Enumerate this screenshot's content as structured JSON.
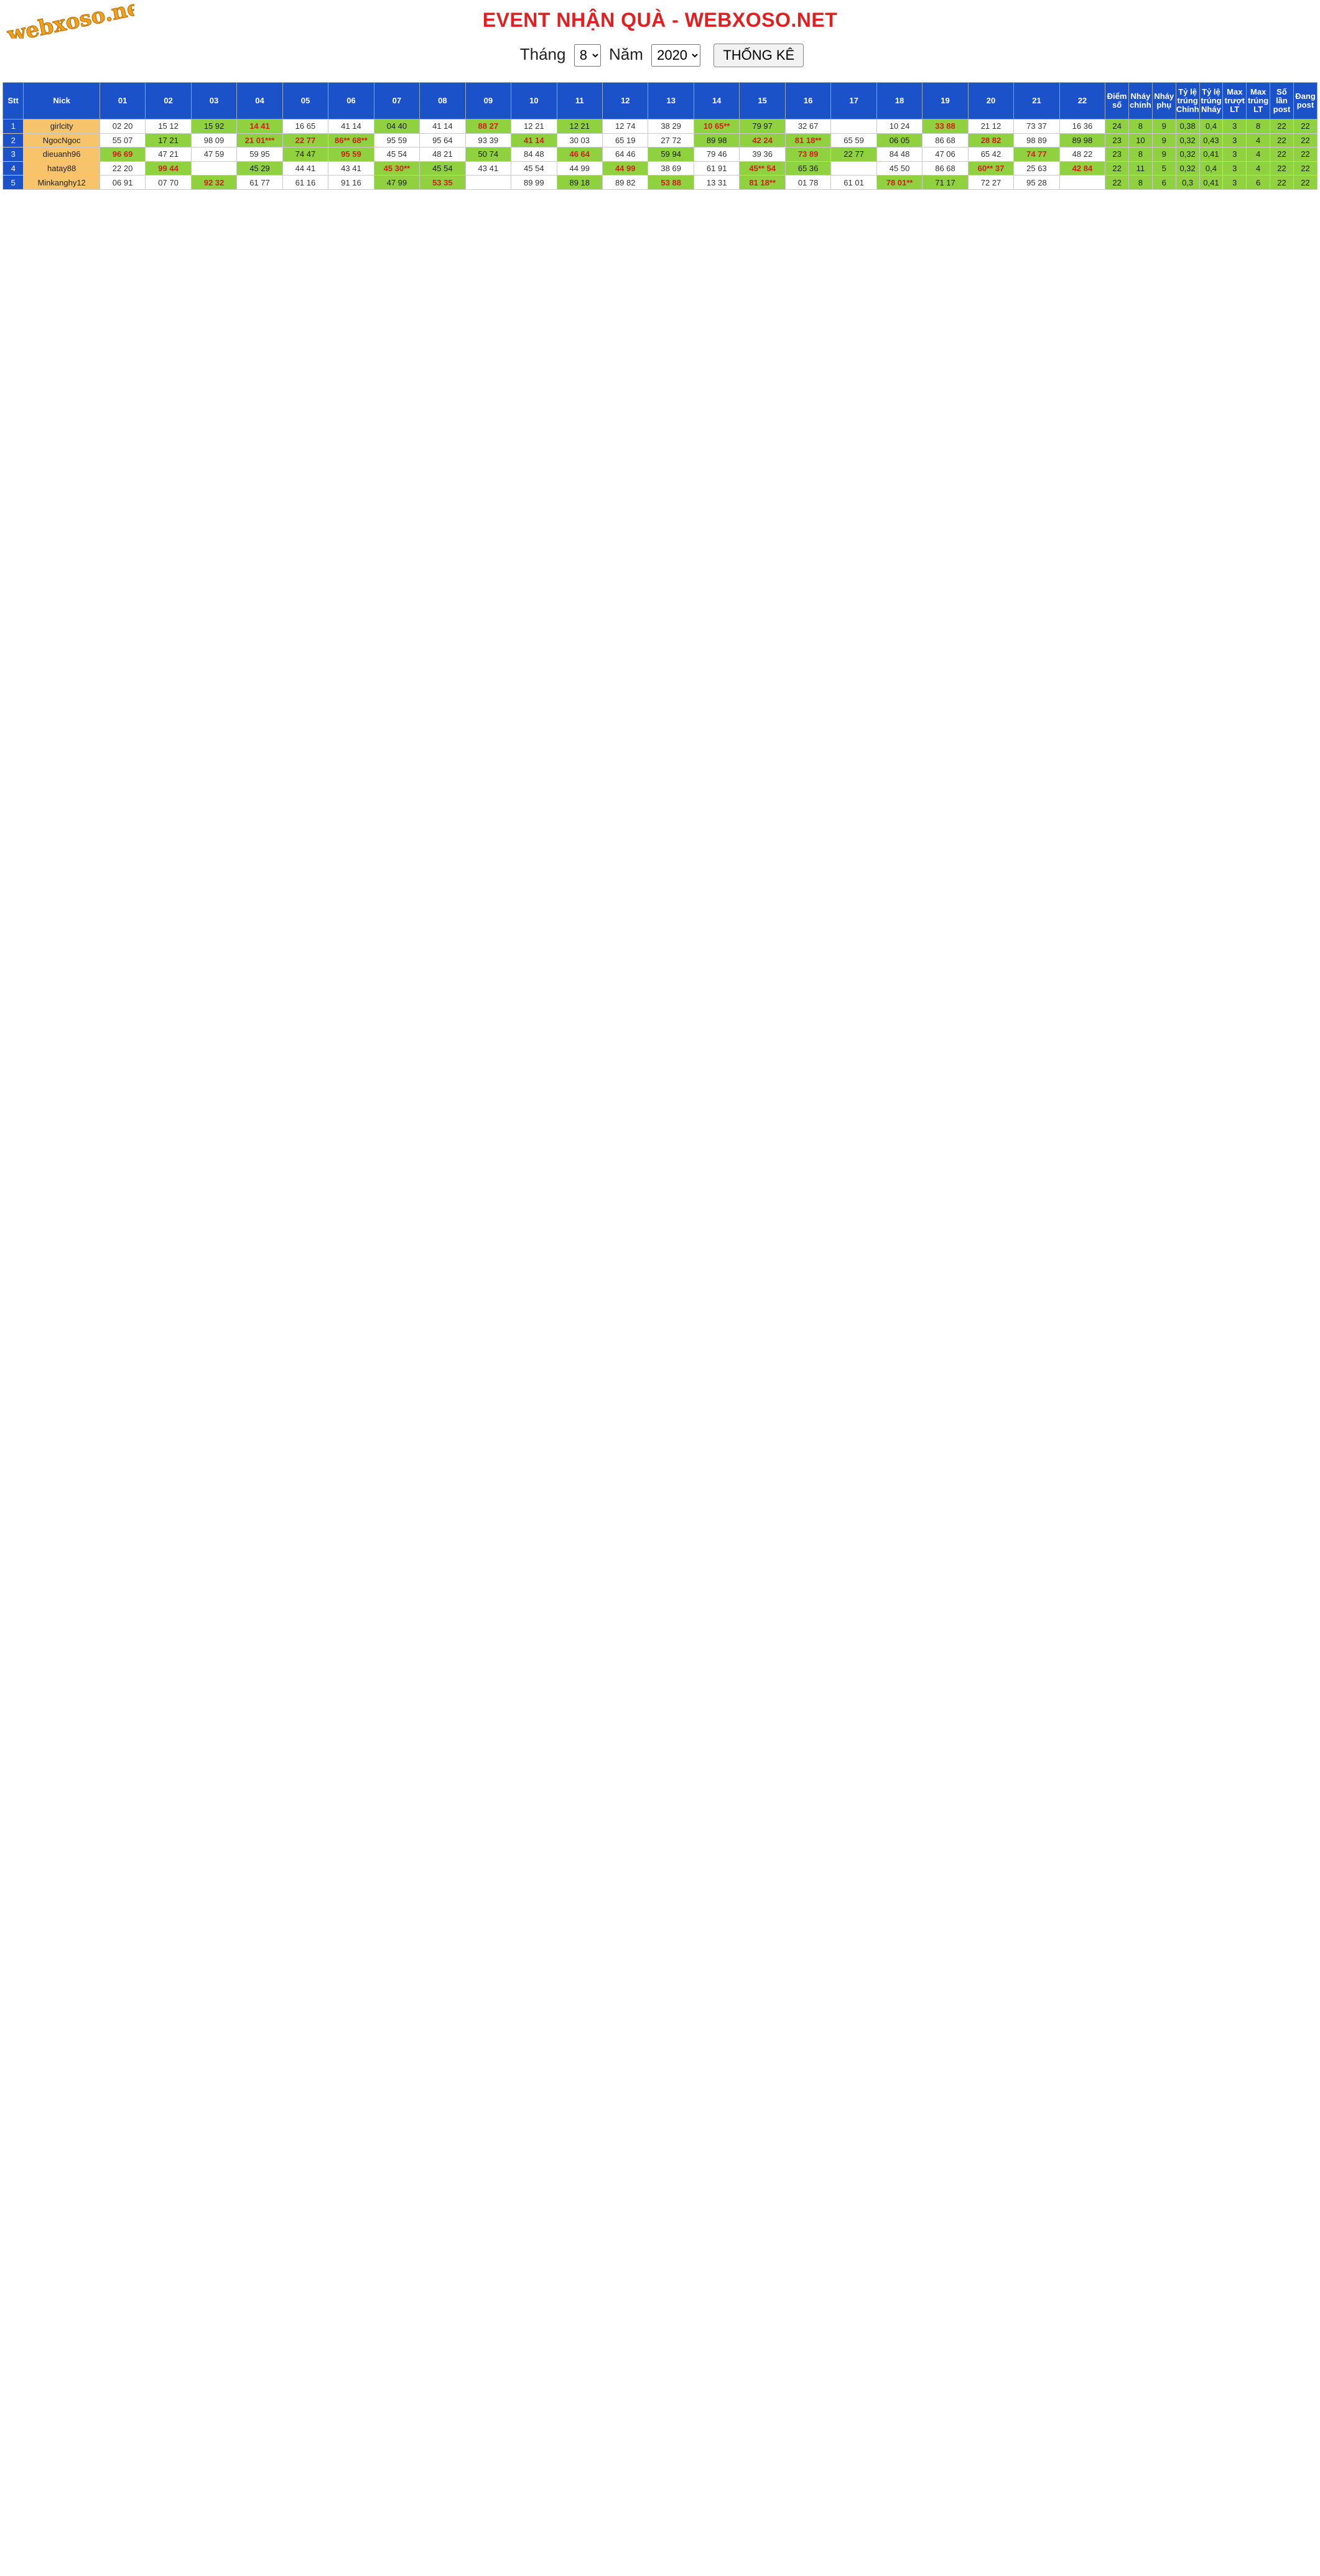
{
  "page": {
    "logo_text": "webxoso.net",
    "title": "EVENT NHẬN QUÀ - WEBXOSO.NET",
    "month_label": "Tháng",
    "month_value": "8",
    "year_label": "Năm",
    "year_value": "2020",
    "stats_button": "THỐNG KÊ"
  },
  "colors": {
    "header_bg": "#1b52c9",
    "nick_bg": "#f7c46b",
    "highlight_bg": "#8fd13f",
    "title_red": "#e02020"
  },
  "table": {
    "headers": [
      "Stt",
      "Nick",
      "01",
      "02",
      "03",
      "04",
      "05",
      "06",
      "07",
      "08",
      "09",
      "10",
      "11",
      "12",
      "13",
      "14",
      "15",
      "16",
      "17",
      "18",
      "19",
      "20",
      "21",
      "22",
      "Điểm số",
      "Nháy chính",
      "Nháy phụ",
      "Tỷ lệ trúng Chính",
      "Tỷ lệ trúng Nháy",
      "Max trượt LT",
      "Max trúng LT",
      "Số lần post",
      "Đang post"
    ],
    "rows": [
      [
        "1",
        "girlcity",
        "02 20",
        "15 12",
        "15 92",
        "14 41",
        "16 65",
        "41 14",
        "04 40",
        "41 14",
        "88 27",
        "12 21",
        "12 21",
        "12 74",
        "38 29",
        "10 65**",
        "79 97",
        "32 67",
        "",
        "10 24",
        "33 88",
        "21 12",
        "73 37",
        "16 36",
        "24",
        "8",
        "9",
        "0,38",
        "0,4",
        "3",
        "8",
        "22",
        "22"
      ],
      [
        "2",
        "NgocNgoc",
        "55 07",
        "17 21",
        "98 09",
        "21 01***",
        "22 77",
        "86** 68**",
        "95 59",
        "95 64",
        "93 39",
        "41 14",
        "30 03",
        "65 19",
        "27 72",
        "89 98",
        "42 24",
        "81 18**",
        "65 59",
        "06 05",
        "86 68",
        "28 82",
        "98 89",
        "89 98",
        "23",
        "10",
        "9",
        "0,32",
        "0,43",
        "3",
        "4",
        "22",
        "22"
      ],
      [
        "3",
        "dieuanh96",
        "96 69",
        "47 21",
        "47 59",
        "59 95",
        "74 47",
        "95 59",
        "45 54",
        "48 21",
        "50 74",
        "84 48",
        "46 64",
        "64 46",
        "59 94",
        "79 46",
        "39 36",
        "73 89",
        "22 77",
        "84 48",
        "47 06",
        "65 42",
        "74 77",
        "48 22",
        "23",
        "8",
        "9",
        "0,32",
        "0,41",
        "3",
        "4",
        "22",
        "22"
      ],
      [
        "4",
        "hatay88",
        "22 20",
        "99 44",
        "",
        "45 29",
        "44 41",
        "43 41",
        "45 30**",
        "45 54",
        "43 41",
        "45 54",
        "44 99",
        "44 99",
        "38 69",
        "61 91",
        "45** 54",
        "65 36",
        "",
        "45 50",
        "86 68",
        "60** 37",
        "25 63",
        "42 84",
        "22",
        "11",
        "5",
        "0,32",
        "0,4",
        "3",
        "4",
        "22",
        "22"
      ],
      [
        "5",
        "Minkanghy12",
        "06 91",
        "07 70",
        "92 32",
        "61 77",
        "61 16",
        "91 16",
        "47 99",
        "53 35",
        "",
        "89 99",
        "89 18",
        "89 82",
        "53 88",
        "13 31",
        "81 18**",
        "01 78",
        "61 01",
        "78 01**",
        "71 17",
        "72 27",
        "95 28",
        "",
        "22",
        "8",
        "6",
        "0,3",
        "0,41",
        "3",
        "6",
        "22",
        "22"
      ]
    ]
  }
}
